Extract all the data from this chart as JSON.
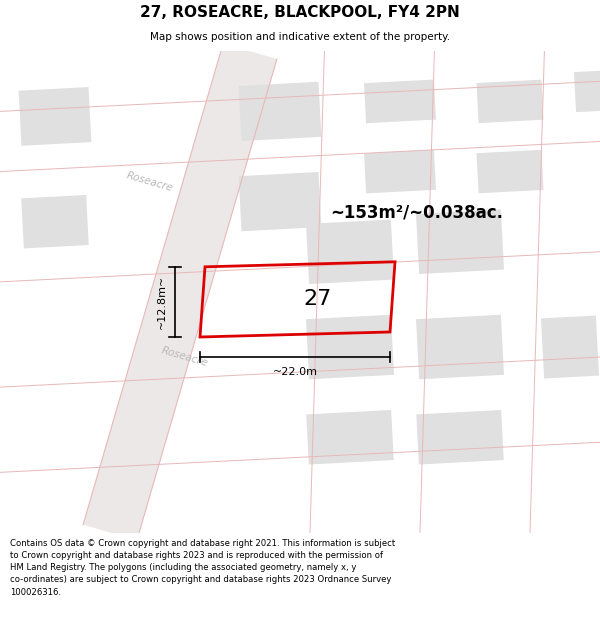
{
  "title": "27, ROSEACRE, BLACKPOOL, FY4 2PN",
  "subtitle": "Map shows position and indicative extent of the property.",
  "footer_lines": [
    "Contains OS data © Crown copyright and database right 2021. This information is subject",
    "to Crown copyright and database rights 2023 and is reproduced with the permission of",
    "HM Land Registry. The polygons (including the associated geometry, namely x, y",
    "co-ordinates) are subject to Crown copyright and database rights 2023 Ordnance Survey",
    "100026316."
  ],
  "area_text": "~153m²/~0.038ac.",
  "width_label": "~22.0m",
  "height_label": "~12.8m~",
  "plot_number": "27",
  "map_bg": "#f7f5f5",
  "road_bg": "#f0ecec",
  "building_color": "#e2e0e0",
  "road_line_color": "#e8b8b8",
  "plot_outline_color": "#dd0000",
  "title_color": "#000000",
  "footer_color": "#000000"
}
